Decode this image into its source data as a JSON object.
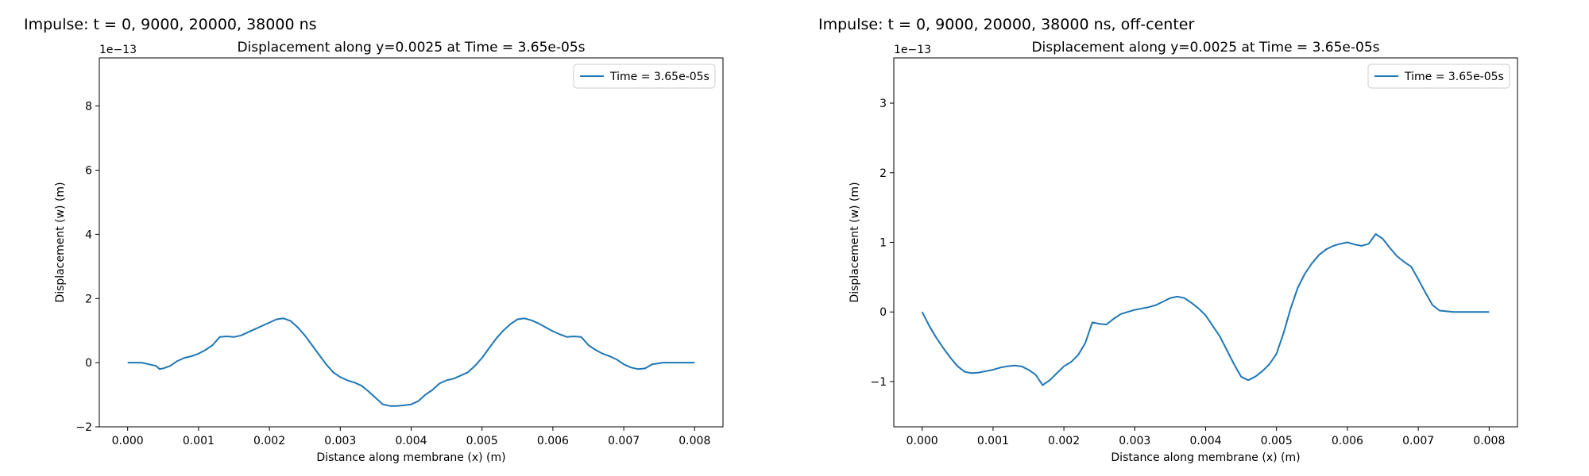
{
  "chart_data": [
    {
      "type": "line",
      "heading": "Impulse: t = 0, 9000, 20000, 38000 ns",
      "title": "Displacement along y=0.0025 at Time = 3.65e-05s",
      "xlabel": "Distance along membrane (x) (m)",
      "ylabel": "Displacement (w) (m)",
      "offset_label": "1e−13",
      "xlim": [
        -0.0004,
        0.0084
      ],
      "ylim": [
        -2,
        9.5
      ],
      "xticks": [
        0.0,
        0.001,
        0.002,
        0.003,
        0.004,
        0.005,
        0.006,
        0.007,
        0.008
      ],
      "xtick_labels": [
        "0.000",
        "0.001",
        "0.002",
        "0.003",
        "0.004",
        "0.005",
        "0.006",
        "0.007",
        "0.008"
      ],
      "yticks": [
        -2,
        0,
        2,
        4,
        6,
        8
      ],
      "ytick_labels": [
        "−2",
        "0",
        "2",
        "4",
        "6",
        "8"
      ],
      "legend_position": "upper right",
      "grid": false,
      "series": [
        {
          "name": "Time = 3.65e-05s",
          "color": "#1f77b4",
          "x": [
            0.0,
            0.0002,
            0.0003,
            0.0004,
            0.00045,
            0.0005,
            0.0006,
            0.0007,
            0.0008,
            0.0009,
            0.001,
            0.0011,
            0.0012,
            0.0013,
            0.0014,
            0.0015,
            0.0016,
            0.0017,
            0.0018,
            0.0019,
            0.002,
            0.0021,
            0.0022,
            0.0023,
            0.0024,
            0.0025,
            0.0026,
            0.0027,
            0.0028,
            0.0029,
            0.003,
            0.0031,
            0.0032,
            0.0033,
            0.0034,
            0.0035,
            0.0036,
            0.0037,
            0.0038,
            0.0039,
            0.004,
            0.0041,
            0.0042,
            0.0043,
            0.0044,
            0.0045,
            0.0046,
            0.0047,
            0.0048,
            0.0049,
            0.005,
            0.0051,
            0.0052,
            0.0053,
            0.0054,
            0.0055,
            0.0056,
            0.0057,
            0.0058,
            0.0059,
            0.006,
            0.0061,
            0.0062,
            0.0063,
            0.0064,
            0.0065,
            0.0066,
            0.0067,
            0.0068,
            0.0069,
            0.007,
            0.0071,
            0.0072,
            0.0073,
            0.0074,
            0.0075,
            0.00755,
            0.0076,
            0.0077,
            0.0078,
            0.008
          ],
          "y": [
            0.0,
            0.0,
            -0.05,
            -0.1,
            -0.2,
            -0.18,
            -0.1,
            0.05,
            0.15,
            0.2,
            0.28,
            0.4,
            0.55,
            0.8,
            0.82,
            0.8,
            0.85,
            0.95,
            1.05,
            1.15,
            1.25,
            1.35,
            1.38,
            1.3,
            1.1,
            0.85,
            0.55,
            0.25,
            -0.05,
            -0.3,
            -0.45,
            -0.55,
            -0.62,
            -0.72,
            -0.9,
            -1.1,
            -1.3,
            -1.35,
            -1.35,
            -1.33,
            -1.3,
            -1.2,
            -1.0,
            -0.85,
            -0.65,
            -0.55,
            -0.5,
            -0.4,
            -0.3,
            -0.1,
            0.15,
            0.45,
            0.75,
            1.0,
            1.2,
            1.35,
            1.38,
            1.32,
            1.22,
            1.1,
            0.98,
            0.88,
            0.8,
            0.82,
            0.8,
            0.55,
            0.4,
            0.28,
            0.2,
            0.1,
            -0.05,
            -0.15,
            -0.2,
            -0.18,
            -0.05,
            -0.02,
            0.0,
            0.0,
            0.0,
            0.0,
            0.0
          ]
        }
      ]
    },
    {
      "type": "line",
      "heading": "Impulse: t = 0, 9000, 20000, 38000 ns, off-center",
      "title": "Displacement along y=0.0025 at Time = 3.65e-05s",
      "xlabel": "Distance along membrane (x) (m)",
      "ylabel": "Displacement (w) (m)",
      "offset_label": "1e−13",
      "xlim": [
        -0.0004,
        0.0084
      ],
      "ylim": [
        -1.65,
        3.65
      ],
      "xticks": [
        0.0,
        0.001,
        0.002,
        0.003,
        0.004,
        0.005,
        0.006,
        0.007,
        0.008
      ],
      "xtick_labels": [
        "0.000",
        "0.001",
        "0.002",
        "0.003",
        "0.004",
        "0.005",
        "0.006",
        "0.007",
        "0.008"
      ],
      "yticks": [
        -1,
        0,
        1,
        2,
        3
      ],
      "ytick_labels": [
        "−1",
        "0",
        "1",
        "2",
        "3"
      ],
      "legend_position": "upper right",
      "grid": false,
      "series": [
        {
          "name": "Time = 3.65e-05s",
          "color": "#1f77b4",
          "x": [
            0.0,
            0.0001,
            0.0002,
            0.0003,
            0.0004,
            0.0005,
            0.0006,
            0.0007,
            0.0008,
            0.0009,
            0.001,
            0.0011,
            0.0012,
            0.0013,
            0.0014,
            0.0015,
            0.0016,
            0.0017,
            0.0018,
            0.0019,
            0.002,
            0.0021,
            0.0022,
            0.0023,
            0.0024,
            0.0025,
            0.0026,
            0.0027,
            0.0028,
            0.0029,
            0.003,
            0.0031,
            0.0032,
            0.0033,
            0.0034,
            0.0035,
            0.0036,
            0.0037,
            0.0038,
            0.0039,
            0.004,
            0.0041,
            0.0042,
            0.0043,
            0.0044,
            0.0045,
            0.0046,
            0.0047,
            0.0048,
            0.0049,
            0.005,
            0.0051,
            0.0052,
            0.0053,
            0.0054,
            0.0055,
            0.0056,
            0.0057,
            0.0058,
            0.0059,
            0.006,
            0.0061,
            0.0062,
            0.0063,
            0.0064,
            0.0065,
            0.0066,
            0.0067,
            0.0068,
            0.0069,
            0.007,
            0.0071,
            0.0072,
            0.0073,
            0.0074,
            0.0075,
            0.0076,
            0.0077,
            0.0078,
            0.0079,
            0.008
          ],
          "y": [
            0.0,
            -0.2,
            -0.37,
            -0.52,
            -0.66,
            -0.78,
            -0.86,
            -0.88,
            -0.87,
            -0.85,
            -0.83,
            -0.8,
            -0.78,
            -0.77,
            -0.78,
            -0.83,
            -0.9,
            -1.05,
            -0.98,
            -0.88,
            -0.78,
            -0.72,
            -0.62,
            -0.45,
            -0.15,
            -0.17,
            -0.18,
            -0.1,
            -0.03,
            0.0,
            0.03,
            0.05,
            0.07,
            0.1,
            0.15,
            0.2,
            0.22,
            0.2,
            0.13,
            0.05,
            -0.05,
            -0.2,
            -0.35,
            -0.55,
            -0.75,
            -0.93,
            -0.98,
            -0.93,
            -0.85,
            -0.75,
            -0.6,
            -0.3,
            0.05,
            0.35,
            0.55,
            0.7,
            0.82,
            0.9,
            0.95,
            0.98,
            1.0,
            0.97,
            0.95,
            0.98,
            1.12,
            1.05,
            0.92,
            0.8,
            0.72,
            0.65,
            0.47,
            0.28,
            0.1,
            0.02,
            0.01,
            0.0,
            0.0,
            0.0,
            0.0,
            0.0,
            0.0
          ]
        }
      ]
    }
  ]
}
